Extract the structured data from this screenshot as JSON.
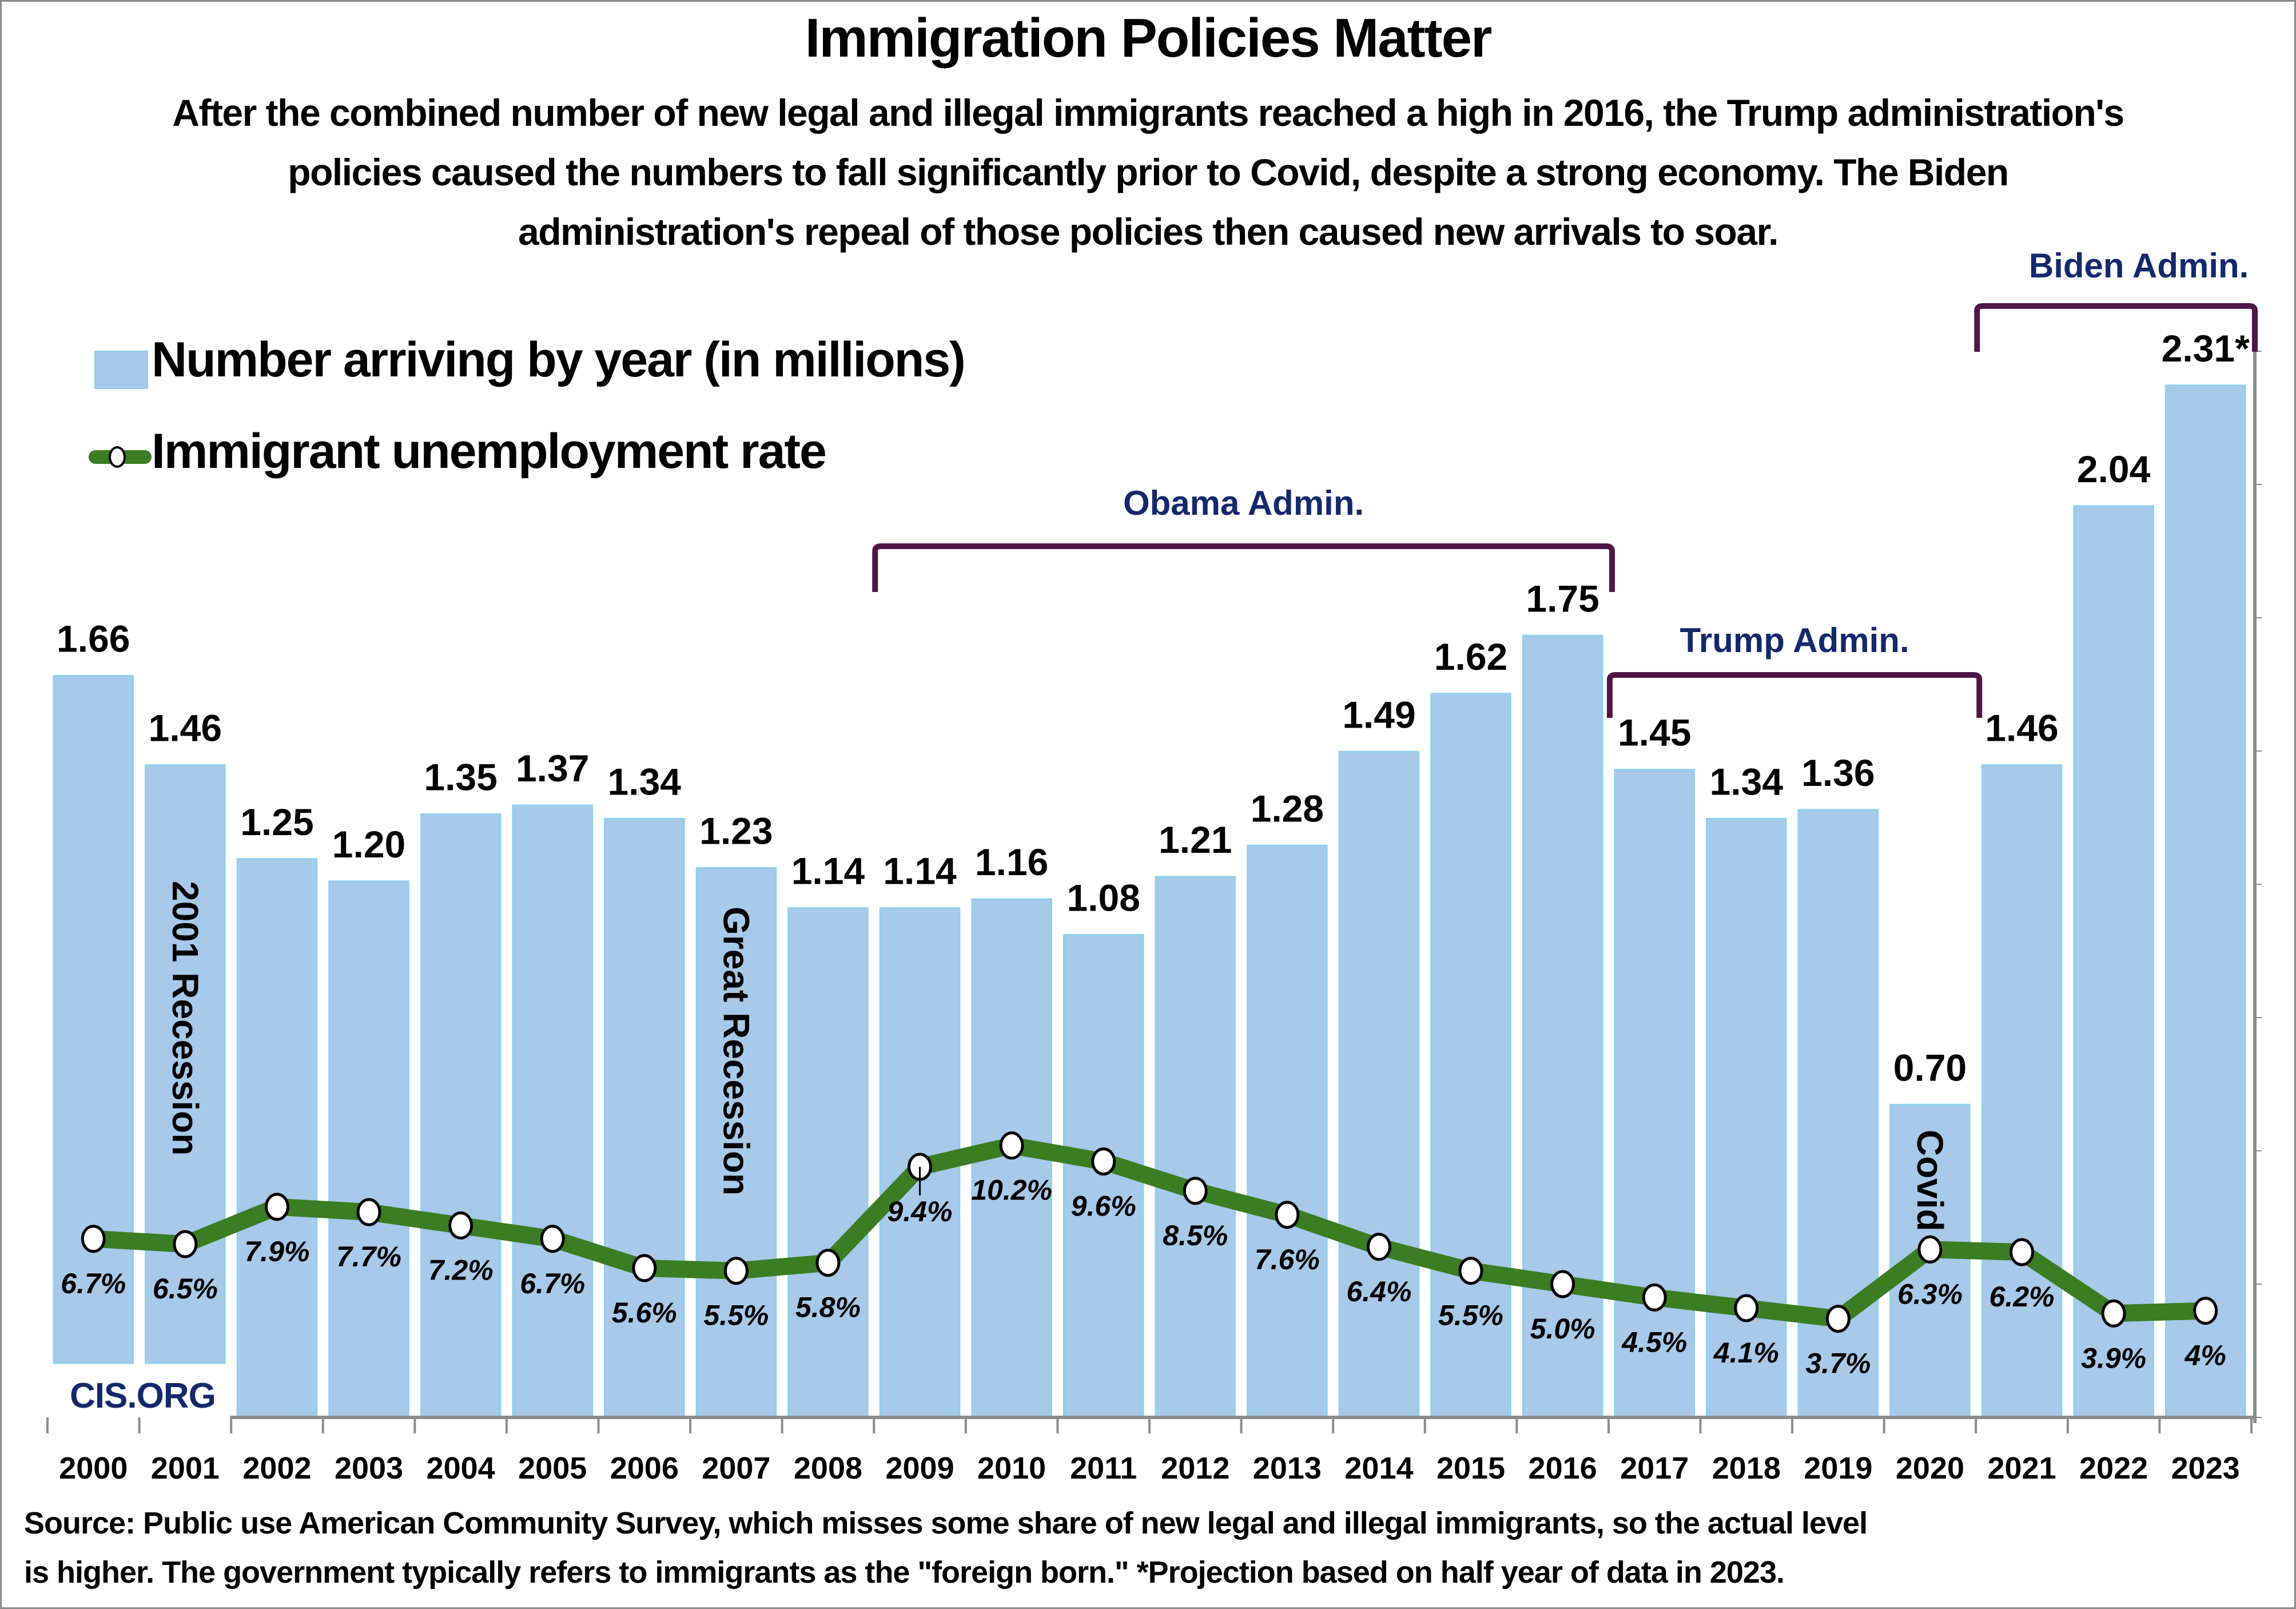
{
  "header": {
    "title": "Immigration Policies Matter",
    "subtitle_lines": [
      "After the combined number of new legal and illegal immigrants reached a high in 2016, the Trump administration's",
      "policies caused the numbers to fall significantly prior to Covid, despite a strong economy. The Biden",
      "administration's repeal of those policies then caused new arrivals to soar."
    ]
  },
  "legend": {
    "bars_label": "Number arriving by year (in millions)",
    "line_label": "Immigrant unemployment rate"
  },
  "watermark": "CIS.ORG",
  "footnote_lines": [
    "Source: Public use American Community Survey, which misses some share of new legal and illegal immigrants, so the actual level",
    "is higher.  The government typically refers to immigrants as the \"foreign born.\" *Projection based on half year of data in 2023."
  ],
  "colors": {
    "bar_fill": "#a7c9ea",
    "bar_edge": "#8fd0ee",
    "line": "#3a7d22",
    "marker_fill": "#ffffff",
    "bracket": "#4f1548",
    "admin_label": "#12296b"
  },
  "chart_data": {
    "type": "bar",
    "title": "Immigration Policies Matter",
    "xlabel": "",
    "ylabel": "",
    "categories": [
      "2000",
      "2001",
      "2002",
      "2003",
      "2004",
      "2005",
      "2006",
      "2007",
      "2008",
      "2009",
      "2010",
      "2011",
      "2012",
      "2013",
      "2014",
      "2015",
      "2016",
      "2017",
      "2018",
      "2019",
      "2020",
      "2021",
      "2022",
      "2023"
    ],
    "series": [
      {
        "name": "Number arriving by year (in millions)",
        "type": "bar",
        "values": [
          1.66,
          1.46,
          1.25,
          1.2,
          1.35,
          1.37,
          1.34,
          1.23,
          1.14,
          1.14,
          1.16,
          1.08,
          1.21,
          1.28,
          1.49,
          1.62,
          1.75,
          1.45,
          1.34,
          1.36,
          0.7,
          1.46,
          2.04,
          2.31
        ],
        "labels": [
          "1.66",
          "1.46",
          "1.25",
          "1.20",
          "1.35",
          "1.37",
          "1.34",
          "1.23",
          "1.14",
          "1.14",
          "1.16",
          "1.08",
          "1.21",
          "1.28",
          "1.49",
          "1.62",
          "1.75",
          "1.45",
          "1.34",
          "1.36",
          "0.70",
          "1.46",
          "2.04",
          "2.31*"
        ],
        "ylim": [
          0,
          2.31
        ]
      },
      {
        "name": "Immigrant unemployment rate",
        "type": "line",
        "unit": "%",
        "values": [
          6.7,
          6.5,
          7.9,
          7.7,
          7.2,
          6.7,
          5.6,
          5.5,
          5.8,
          9.4,
          10.2,
          9.6,
          8.5,
          7.6,
          6.4,
          5.5,
          5.0,
          4.5,
          4.1,
          3.7,
          6.3,
          6.2,
          3.9,
          4.0
        ],
        "labels": [
          "6.7%",
          "6.5%",
          "7.9%",
          "7.7%",
          "7.2%",
          "6.7%",
          "5.6%",
          "5.5%",
          "5.8%",
          "9.4%",
          "10.2%",
          "9.6%",
          "8.5%",
          "7.6%",
          "6.4%",
          "5.5%",
          "5.0%",
          "4.5%",
          "4.1%",
          "3.7%",
          "6.3%",
          "6.2%",
          "3.9%",
          "4%"
        ]
      }
    ],
    "event_annotations": [
      {
        "text": "2001 Recession",
        "category": "2001"
      },
      {
        "text": "Great Recession",
        "category": "2007"
      },
      {
        "text": "Covid",
        "category": "2020"
      }
    ],
    "administration_brackets": [
      {
        "label": "Obama Admin.",
        "from": "2009",
        "to": "2016"
      },
      {
        "label": "Trump Admin.",
        "from": "2017",
        "to": "2020"
      },
      {
        "label": "Biden Admin.",
        "from": "2021",
        "to": "2023"
      }
    ],
    "grid": false,
    "legend_position": "top-left"
  }
}
